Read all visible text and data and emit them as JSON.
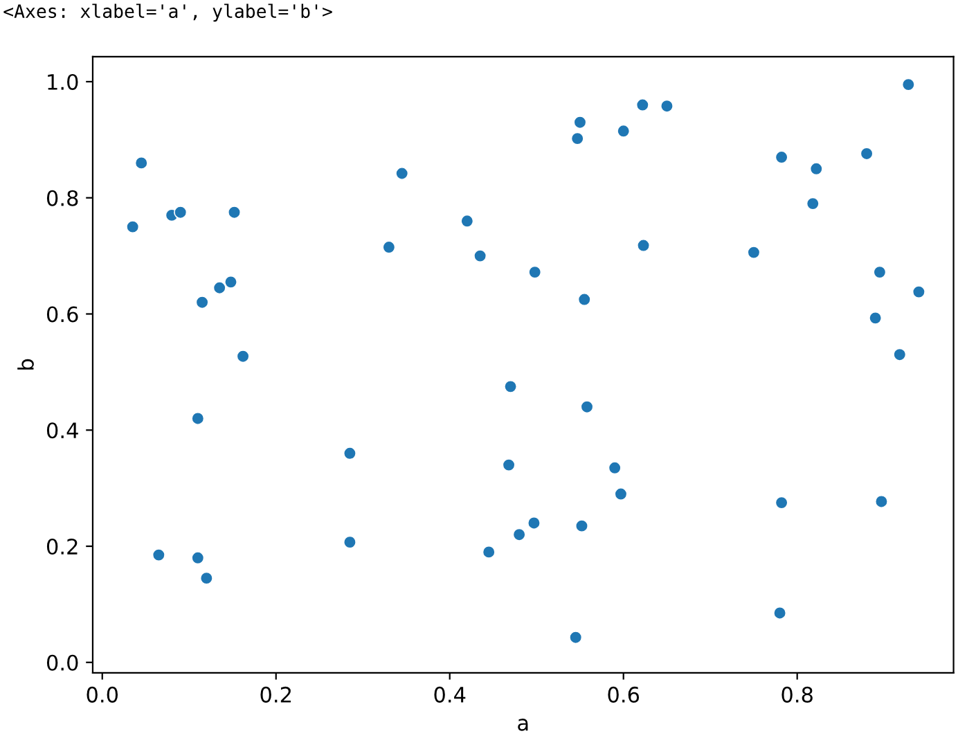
{
  "chart_data": {
    "type": "scatter",
    "xlabel": "a",
    "ylabel": "b",
    "annotations": [
      "<Axes: xlabel='a', ylabel='b'>"
    ],
    "x": [
      0.035,
      0.045,
      0.065,
      0.08,
      0.09,
      0.11,
      0.11,
      0.115,
      0.12,
      0.135,
      0.148,
      0.152,
      0.162,
      0.285,
      0.285,
      0.33,
      0.345,
      0.42,
      0.435,
      0.445,
      0.468,
      0.47,
      0.48,
      0.497,
      0.498,
      0.545,
      0.547,
      0.55,
      0.552,
      0.555,
      0.558,
      0.59,
      0.597,
      0.6,
      0.622,
      0.623,
      0.65,
      0.75,
      0.78,
      0.782,
      0.782,
      0.818,
      0.822,
      0.88,
      0.89,
      0.895,
      0.897,
      0.918,
      0.928,
      0.94
    ],
    "values": [
      0.75,
      0.86,
      0.185,
      0.77,
      0.775,
      0.42,
      0.18,
      0.62,
      0.145,
      0.645,
      0.655,
      0.775,
      0.527,
      0.36,
      0.207,
      0.715,
      0.842,
      0.76,
      0.7,
      0.19,
      0.34,
      0.475,
      0.22,
      0.24,
      0.672,
      0.043,
      0.902,
      0.93,
      0.235,
      0.625,
      0.44,
      0.335,
      0.29,
      0.915,
      0.96,
      0.718,
      0.958,
      0.706,
      0.085,
      0.275,
      0.87,
      0.79,
      0.85,
      0.876,
      0.593,
      0.672,
      0.277,
      0.53,
      0.995,
      0.638
    ],
    "color": "#1f77b4",
    "marker": "circle",
    "grid": false,
    "xlim": [
      -0.011,
      0.98
    ],
    "ylim": [
      -0.018,
      1.043
    ],
    "xticks": [
      {
        "value": 0,
        "label": "0.0"
      },
      0.2,
      0.4,
      0.6,
      0.8
    ],
    "yticks": [
      {
        "value": 0,
        "label": "0.0"
      },
      0.2,
      0.4,
      0.6,
      0.8,
      {
        "value": 1,
        "label": "1.0"
      }
    ]
  }
}
